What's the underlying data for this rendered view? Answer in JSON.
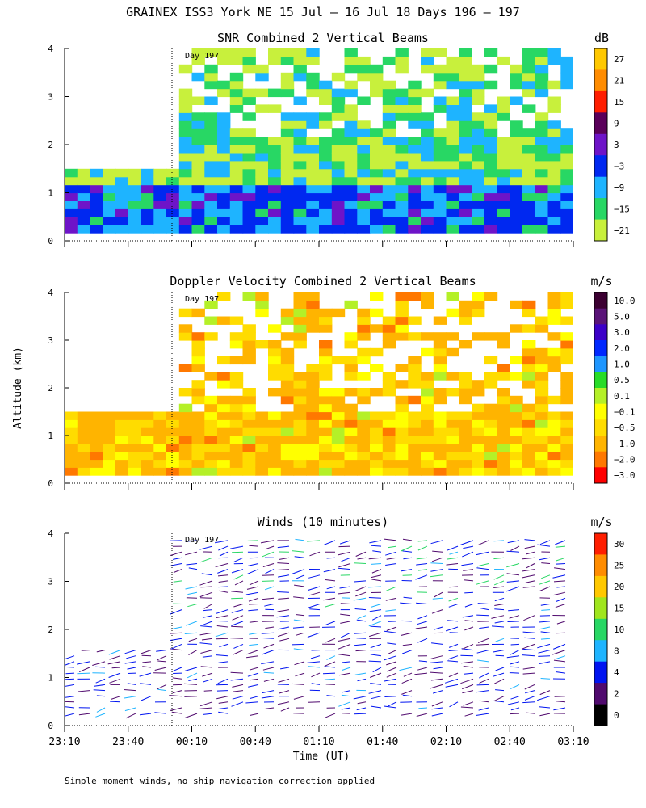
{
  "title": "GRAINEX ISS3 York NE  15 Jul – 16 Jul 18 Days 196 – 197",
  "ylabel": "Altitude (km)",
  "xlabel": "Time (UT)",
  "footnote": "Simple moment winds, no ship navigation correction applied",
  "day_marker": "Day 197",
  "colors": {
    "axis": "#000000",
    "snr_low": "#c8f03c",
    "snr_mid": "#1e8cff",
    "vel_orange": "#ffb400",
    "vel_yellow": "#ffe600"
  },
  "chart_data": [
    {
      "type": "heatmap",
      "title": "SNR Combined 2 Vertical Beams",
      "units": "dB",
      "xlabel": "Time (UT)",
      "ylabel": "Altitude (km)",
      "x_ticks": [
        "23:10",
        "23:40",
        "00:10",
        "00:40",
        "01:10",
        "01:40",
        "02:10",
        "02:40",
        "03:10"
      ],
      "y_ticks": [
        "0",
        "1",
        "2",
        "3",
        "4"
      ],
      "ylim": [
        0,
        4
      ],
      "colorbar": {
        "labels": [
          "27",
          "21",
          "15",
          "9",
          "3",
          "−3",
          "−9",
          "−15",
          "−21"
        ],
        "colors": [
          "#ffc800",
          "#ff8c00",
          "#ff1e00",
          "#5a005a",
          "#6e14c8",
          "#0028f0",
          "#1eb4ff",
          "#28d764",
          "#c8f03c"
        ]
      }
    },
    {
      "type": "heatmap",
      "title": "Doppler Velocity Combined 2 Vertical Beams",
      "units": "m/s",
      "xlabel": "Time (UT)",
      "ylabel": "Altitude (km)",
      "x_ticks": [
        "23:10",
        "23:40",
        "00:10",
        "00:40",
        "01:10",
        "01:40",
        "02:10",
        "02:40",
        "03:10"
      ],
      "y_ticks": [
        "0",
        "1",
        "2",
        "3",
        "4"
      ],
      "ylim": [
        0,
        4
      ],
      "colorbar": {
        "labels": [
          "10.0",
          "5.0",
          "3.0",
          "2.0",
          "1.0",
          "0.5",
          "0.1",
          "−0.1",
          "−0.5",
          "−1.0",
          "−2.0",
          "−3.0"
        ],
        "colors": [
          "#3c0032",
          "#5a1478",
          "#3c00c8",
          "#0028ff",
          "#1e96ff",
          "#28dc28",
          "#b4f028",
          "#ffff00",
          "#ffdc00",
          "#ffb400",
          "#ff7800",
          "#ff0000"
        ]
      }
    },
    {
      "type": "scatter",
      "title": "Winds (10 minutes)",
      "units": "m/s",
      "xlabel": "Time (UT)",
      "ylabel": "Altitude (km)",
      "x_ticks": [
        "23:10",
        "23:40",
        "00:10",
        "00:40",
        "01:10",
        "01:40",
        "02:10",
        "02:40",
        "03:10"
      ],
      "y_ticks": [
        "0",
        "1",
        "2",
        "3",
        "4"
      ],
      "ylim": [
        0,
        4
      ],
      "colorbar": {
        "labels": [
          "30",
          "25",
          "20",
          "15",
          "10",
          "8",
          "4",
          "2",
          "0"
        ],
        "colors": [
          "#ff1e00",
          "#ff8c00",
          "#ffc800",
          "#a0e61e",
          "#28d764",
          "#1eb4ff",
          "#0014f0",
          "#500a6e",
          "#000000"
        ]
      }
    }
  ]
}
